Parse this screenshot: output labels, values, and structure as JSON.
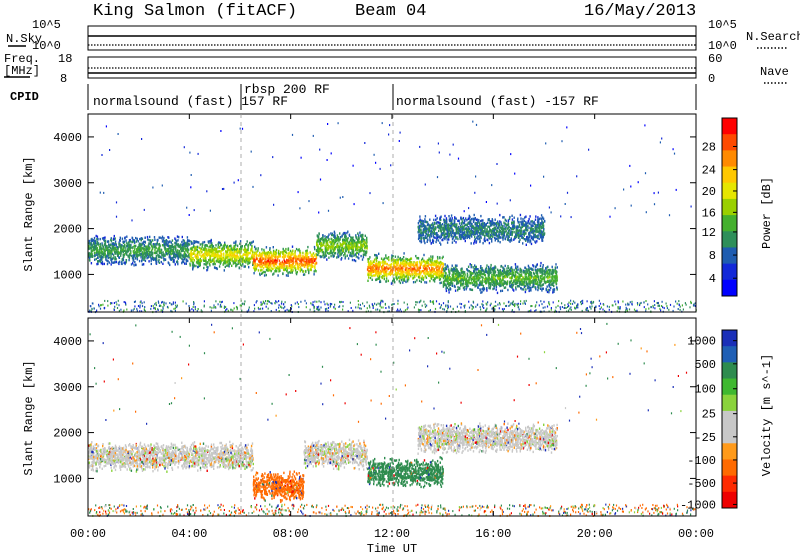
{
  "header": {
    "station": "King Salmon (fitACF)",
    "beam": "Beam 04",
    "date": "16/May/2013"
  },
  "top_panels": {
    "nsky_label": "N.Sky",
    "nsearch_label": "N.Search",
    "freq_label_line1": "Freq.",
    "freq_label_line2": "[MHz]",
    "nave_label": "Nave",
    "left_ticks_noise": [
      "10^5",
      "10^0"
    ],
    "right_ticks_noise": [
      "10^5",
      "10^0"
    ],
    "left_ticks_freq": [
      "18",
      "8"
    ],
    "right_ticks_nave": [
      "60",
      "0"
    ]
  },
  "cpid": {
    "label": "CPID",
    "segments": [
      {
        "text": "normalsound (fast) 157 RF",
        "start_hour": 0
      },
      {
        "text": "rbsp 200 RF",
        "start_hour": 6
      },
      {
        "text": "normalsound (fast) -157 RF",
        "start_hour": 12
      }
    ]
  },
  "colorbars": {
    "power": {
      "title": "Power [dB]",
      "ticks": [
        "28",
        "24",
        "20",
        "16",
        "12",
        "8",
        "4"
      ],
      "colors": [
        "#ff0000",
        "#ff4a00",
        "#ff8a00",
        "#ffc800",
        "#e6e600",
        "#9ad000",
        "#44b02e",
        "#2e8f5a",
        "#1e5cb0",
        "#1228d8",
        "#0000ff"
      ]
    },
    "velocity": {
      "title": "Velocity [m s^-1]",
      "ticks": [
        "1000",
        "500",
        "100",
        "25",
        "-25",
        "-100",
        "-500",
        "-1000"
      ],
      "colors": [
        "#1a2fb8",
        "#1f5fb5",
        "#2e8c4f",
        "#3fb830",
        "#8ad33c",
        "#c8c8c8",
        "#c8c8c8",
        "#ff9a1a",
        "#ff6a00",
        "#ff2a00",
        "#ee0000"
      ]
    }
  },
  "axes": {
    "ylabel": "Slant Range [km]",
    "xlabel": "Time UT",
    "yticks": [
      "4000",
      "3000",
      "2000",
      "1000"
    ],
    "xticks": [
      "00:00",
      "04:00",
      "08:00",
      "12:00",
      "16:00",
      "20:00",
      "00:00"
    ]
  },
  "chart_data": [
    {
      "type": "heatmap",
      "title": "",
      "xlabel": "Time UT",
      "ylabel": "Slant Range [km]",
      "x_range_hours": [
        0,
        24
      ],
      "y_range_km": [
        180,
        4500
      ],
      "colorbar_label": "Power [dB]",
      "bands": [
        {
          "start_hour": 0.0,
          "end_hour": 4.0,
          "range_km": 1550,
          "power_db": 10
        },
        {
          "start_hour": 4.0,
          "end_hour": 6.5,
          "range_km": 1450,
          "power_db": 18
        },
        {
          "start_hour": 6.5,
          "end_hour": 9.0,
          "range_km": 1320,
          "power_db": 26
        },
        {
          "start_hour": 9.0,
          "end_hour": 11.0,
          "range_km": 1650,
          "power_db": 14
        },
        {
          "start_hour": 11.0,
          "end_hour": 14.0,
          "range_km": 1150,
          "power_db": 24
        },
        {
          "start_hour": 13.0,
          "end_hour": 18.0,
          "range_km": 2000,
          "power_db": 8
        },
        {
          "start_hour": 14.0,
          "end_hour": 18.5,
          "range_km": 950,
          "power_db": 12
        }
      ]
    },
    {
      "type": "heatmap",
      "title": "",
      "xlabel": "Time UT",
      "ylabel": "Slant Range [km]",
      "x_range_hours": [
        0,
        24
      ],
      "y_range_km": [
        180,
        4500
      ],
      "colorbar_label": "Velocity [m s^-1]",
      "bands": [
        {
          "start_hour": 0.0,
          "end_hour": 6.5,
          "range_km": 1500,
          "velocity": 0
        },
        {
          "start_hour": 6.5,
          "end_hour": 8.5,
          "range_km": 850,
          "velocity": -300
        },
        {
          "start_hour": 8.5,
          "end_hour": 11.0,
          "range_km": 1550,
          "velocity": 0
        },
        {
          "start_hour": 11.0,
          "end_hour": 14.0,
          "range_km": 1150,
          "velocity": 150
        },
        {
          "start_hour": 13.0,
          "end_hour": 18.5,
          "range_km": 1900,
          "velocity": 0
        }
      ]
    }
  ]
}
